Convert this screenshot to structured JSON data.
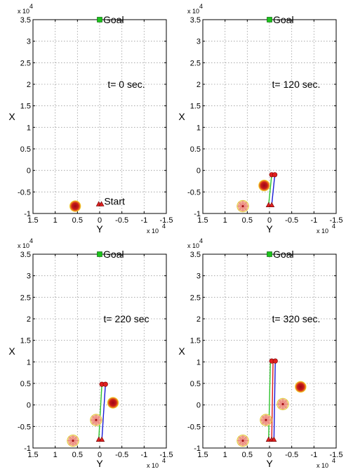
{
  "colors": {
    "goal_marker": "#1cc41c",
    "path_blue": "#1a1ad6",
    "path_green": "#2cc42c",
    "path_red": "#e01818",
    "robot_red": "#e02020",
    "obstacle_core": "#b0101a",
    "obstacle_edge": "#f2e83a",
    "sensor_ring": "#e87878",
    "sensor_fill": "#f7c9a2"
  },
  "chart_data": [
    {
      "type": "scatter",
      "xlabel": "Y",
      "ylabel": "X",
      "x_multiplier": "x 10",
      "x_exponent": "4",
      "y_multiplier": "x 10",
      "y_exponent": "4",
      "xlim": [
        -1.5,
        1.5
      ],
      "x_reversed": true,
      "ylim": [
        -1,
        3.5
      ],
      "x_ticks": [
        1.5,
        1,
        0.5,
        0,
        -0.5,
        -1,
        -1.5
      ],
      "x_tick_labels": [
        "1.5",
        "1",
        "0.5",
        "0",
        "-0.5",
        "-1",
        "-1.5"
      ],
      "y_ticks": [
        -1,
        -0.5,
        0,
        0.5,
        1,
        1.5,
        2,
        2.5,
        3,
        3.5
      ],
      "y_tick_labels": [
        "-1",
        "-0.5",
        "0",
        "0.5",
        "1",
        "1.5",
        "2",
        "2.5",
        "3",
        "3.5"
      ],
      "grid": true,
      "time_label": "t= 0 sec.",
      "time_label_pos": [
        -0.6,
        2
      ],
      "goal": {
        "label": "Goal",
        "y": 0,
        "x": 3.5
      },
      "start": {
        "label": "Start",
        "y": -0.1,
        "x": -0.78
      },
      "obstacles": [
        {
          "y": 0.55,
          "x": -0.83,
          "r": 0.13
        }
      ],
      "sensor_obstacles": [],
      "robots": [
        {
          "y": 0.02,
          "x": -0.78
        },
        {
          "y": -0.03,
          "x": -0.78
        }
      ],
      "paths": []
    },
    {
      "type": "scatter",
      "xlabel": "Y",
      "ylabel": "X",
      "x_multiplier": "x 10",
      "x_exponent": "4",
      "y_multiplier": "x 10",
      "y_exponent": "4",
      "xlim": [
        -1.5,
        1.5
      ],
      "x_reversed": true,
      "ylim": [
        -1,
        3.5
      ],
      "x_ticks": [
        1.5,
        1,
        0.5,
        0,
        -0.5,
        -1,
        -1.5
      ],
      "x_tick_labels": [
        "1.5",
        "1",
        "0.5",
        "0",
        "-0.5",
        "-1",
        "-1.5"
      ],
      "y_ticks": [
        -1,
        -0.5,
        0,
        0.5,
        1,
        1.5,
        2,
        2.5,
        3,
        3.5
      ],
      "y_tick_labels": [
        "-1",
        "-0.5",
        "0",
        "0.5",
        "1",
        "1.5",
        "2",
        "2.5",
        "3",
        "3.5"
      ],
      "grid": true,
      "time_label": "t= 120 sec.",
      "time_label_pos": [
        -0.6,
        2
      ],
      "goal": {
        "label": "Goal",
        "y": 0,
        "x": 3.5
      },
      "start": null,
      "obstacles": [
        {
          "y": 0.12,
          "x": -0.35,
          "r": 0.13
        }
      ],
      "sensor_obstacles": [
        {
          "y": 0.6,
          "x": -0.83,
          "r": 0.13
        }
      ],
      "robots": [
        {
          "y": -0.05,
          "x": -0.1
        },
        {
          "y": -0.12,
          "x": -0.1
        }
      ],
      "paths": [
        {
          "color": "path_green",
          "points": [
            [
              0.02,
              -0.8
            ],
            [
              -0.05,
              -0.1
            ]
          ]
        },
        {
          "color": "path_blue",
          "points": [
            [
              -0.05,
              -0.8
            ],
            [
              -0.12,
              -0.1
            ]
          ]
        }
      ]
    },
    {
      "type": "scatter",
      "xlabel": "Y",
      "ylabel": "X",
      "x_multiplier": "x 10",
      "x_exponent": "4",
      "y_multiplier": "x 10",
      "y_exponent": "4",
      "xlim": [
        -1.5,
        1.5
      ],
      "x_reversed": true,
      "ylim": [
        -1,
        3.5
      ],
      "x_ticks": [
        1.5,
        1,
        0.5,
        0,
        -0.5,
        -1,
        -1.5
      ],
      "x_tick_labels": [
        "1.5",
        "1",
        "0.5",
        "0",
        "-0.5",
        "-1",
        "-1.5"
      ],
      "y_ticks": [
        -1,
        -0.5,
        0,
        0.5,
        1,
        1.5,
        2,
        2.5,
        3,
        3.5
      ],
      "y_tick_labels": [
        "-1",
        "-0.5",
        "0",
        "0.5",
        "1",
        "1.5",
        "2",
        "2.5",
        "3",
        "3.5"
      ],
      "grid": true,
      "time_label": "t= 220 sec",
      "time_label_pos": [
        -0.6,
        2
      ],
      "goal": {
        "label": "Goal",
        "y": 0,
        "x": 3.5
      },
      "start": null,
      "obstacles": [
        {
          "y": -0.3,
          "x": 0.05,
          "r": 0.13
        }
      ],
      "sensor_obstacles": [
        {
          "y": 0.08,
          "x": -0.35,
          "r": 0.13
        },
        {
          "y": 0.6,
          "x": -0.83,
          "r": 0.13
        }
      ],
      "robots": [
        {
          "y": -0.05,
          "x": 0.48
        },
        {
          "y": -0.13,
          "x": 0.48
        }
      ],
      "paths": [
        {
          "color": "path_green",
          "points": [
            [
              0.02,
              -0.8
            ],
            [
              -0.05,
              0.48
            ]
          ]
        },
        {
          "color": "path_blue",
          "points": [
            [
              -0.05,
              -0.8
            ],
            [
              -0.13,
              0.48
            ]
          ]
        }
      ]
    },
    {
      "type": "scatter",
      "xlabel": "Y",
      "ylabel": "X",
      "x_multiplier": "x 10",
      "x_exponent": "4",
      "y_multiplier": "x 10",
      "y_exponent": "4",
      "xlim": [
        -1.5,
        1.5
      ],
      "x_reversed": true,
      "ylim": [
        -1,
        3.5
      ],
      "x_ticks": [
        1.5,
        1,
        0.5,
        0,
        -0.5,
        -1,
        -1.5
      ],
      "x_tick_labels": [
        "1.5",
        "1",
        "0.5",
        "0",
        "-0.5",
        "-1",
        "-1.5"
      ],
      "y_ticks": [
        -1,
        -0.5,
        0,
        0.5,
        1,
        1.5,
        2,
        2.5,
        3,
        3.5
      ],
      "y_tick_labels": [
        "-1",
        "-0.5",
        "0",
        "0.5",
        "1",
        "1.5",
        "2",
        "2.5",
        "3",
        "3.5"
      ],
      "grid": true,
      "time_label": "t= 320 sec.",
      "time_label_pos": [
        -0.6,
        2
      ],
      "goal": {
        "label": "Goal",
        "y": 0,
        "x": 3.5
      },
      "start": null,
      "obstacles": [
        {
          "y": -0.7,
          "x": 0.42,
          "r": 0.13
        }
      ],
      "sensor_obstacles": [
        {
          "y": -0.3,
          "x": 0.02,
          "r": 0.13
        },
        {
          "y": 0.08,
          "x": -0.35,
          "r": 0.13
        },
        {
          "y": 0.6,
          "x": -0.83,
          "r": 0.13
        }
      ],
      "robots": [
        {
          "y": -0.05,
          "x": 1.02
        },
        {
          "y": -0.13,
          "x": 1.02
        }
      ],
      "paths": [
        {
          "color": "path_green",
          "points": [
            [
              0.02,
              -0.8
            ],
            [
              -0.02,
              1.02
            ]
          ]
        },
        {
          "color": "path_red",
          "points": [
            [
              -0.05,
              -0.8
            ],
            [
              -0.08,
              1.02
            ]
          ]
        },
        {
          "color": "path_blue",
          "points": [
            [
              -0.1,
              -0.8
            ],
            [
              -0.13,
              1.02
            ]
          ]
        }
      ]
    }
  ]
}
